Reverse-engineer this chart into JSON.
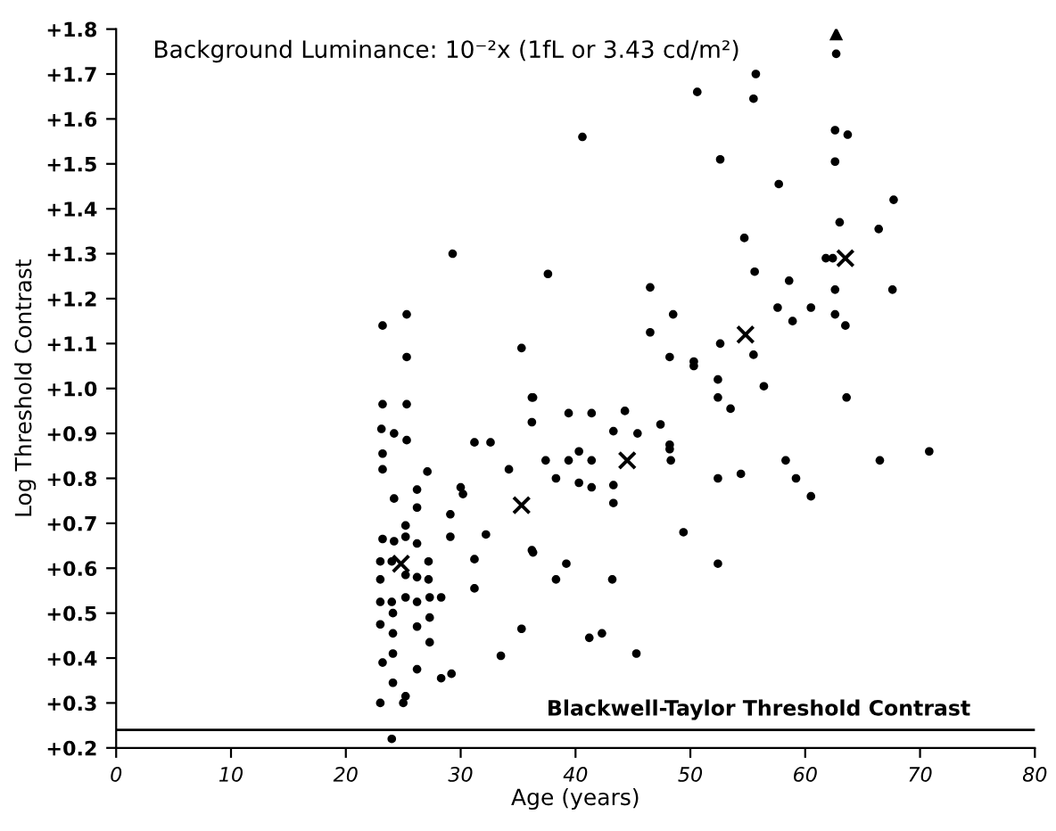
{
  "chart_data": {
    "type": "scatter",
    "title": "Background Luminance: 10⁻²x (1fL or 3.43 cd/m²)",
    "xlabel": "Age (years)",
    "ylabel": "Log Threshold Contrast",
    "xlim": [
      0,
      80
    ],
    "xticks": [
      0,
      10,
      20,
      30,
      40,
      50,
      60,
      70,
      80
    ],
    "ylim": [
      0.2,
      1.8
    ],
    "yticks": [
      {
        "value": 0.2,
        "label": "+0.2"
      },
      {
        "value": 0.3,
        "label": "+0.3"
      },
      {
        "value": 0.4,
        "label": "+0.4"
      },
      {
        "value": 0.5,
        "label": "+0.5"
      },
      {
        "value": 0.6,
        "label": "+0.6"
      },
      {
        "value": 0.7,
        "label": "+0.7"
      },
      {
        "value": 0.8,
        "label": "+0.8"
      },
      {
        "value": 0.9,
        "label": "+0.9"
      },
      {
        "value": 1.0,
        "label": "+1.0"
      },
      {
        "value": 1.1,
        "label": "+1.1"
      },
      {
        "value": 1.2,
        "label": "+1.2"
      },
      {
        "value": 1.3,
        "label": "+1.3"
      },
      {
        "value": 1.4,
        "label": "+1.4"
      },
      {
        "value": 1.5,
        "label": "+1.5"
      },
      {
        "value": 1.6,
        "label": "+1.6"
      },
      {
        "value": 1.7,
        "label": "+1.7"
      },
      {
        "value": 1.8,
        "label": "+1.8"
      }
    ],
    "grid": false,
    "ref_lines": [
      {
        "axis": "y",
        "value": 0.24,
        "label": "Blackwell-Taylor Threshold Contrast",
        "color": "#000000"
      }
    ],
    "series": [
      {
        "color": "#000000",
        "marker": "circle",
        "x": [
          23.2,
          25.3,
          25.3,
          29.3,
          35.3,
          36.2,
          23.2,
          25.3,
          23.1,
          24.2,
          25.3,
          23.2,
          23.2,
          27.1,
          30.0,
          30.2,
          24.2,
          26.2,
          26.2,
          29.1,
          31.2,
          32.6,
          34.2,
          23.2,
          24.2,
          25.2,
          25.2,
          26.2,
          29.1,
          32.2,
          23.0,
          24.0,
          25.2,
          26.2,
          27.2,
          27.2,
          31.2,
          31.2,
          23.0,
          23.0,
          24.0,
          25.2,
          26.2,
          27.3,
          28.3,
          27.3,
          23.0,
          24.1,
          24.1,
          26.2,
          27.3,
          24.1,
          23.2,
          26.2,
          28.3,
          29.2,
          33.5,
          24.1,
          25.2,
          25.0,
          23.0,
          24.0,
          35.3,
          36.2,
          36.2,
          62.7,
          55.7,
          50.6,
          55.5,
          40.6,
          62.6,
          63.7,
          52.6,
          62.6,
          57.7,
          67.7,
          63.0,
          66.4,
          54.7,
          61.8,
          62.4,
          37.6,
          55.6,
          58.6,
          46.5,
          62.6,
          67.6,
          48.5,
          57.6,
          58.9,
          60.5,
          62.6,
          63.5,
          46.5,
          52.6,
          48.2,
          50.3,
          50.3,
          55.5,
          52.4,
          56.4,
          52.4,
          53.5,
          63.6,
          36.3,
          39.4,
          41.4,
          44.3,
          47.4,
          43.3,
          45.4,
          48.2,
          48.2,
          37.4,
          39.4,
          40.3,
          41.4,
          48.3,
          38.3,
          40.3,
          41.4,
          43.3,
          43.3,
          52.4,
          54.4,
          58.3,
          59.2,
          60.5,
          66.5,
          70.8,
          49.4,
          36.3,
          39.2,
          38.3,
          43.2,
          52.4,
          41.2,
          42.3,
          45.3
        ],
        "values": [
          1.14,
          1.165,
          1.07,
          1.3,
          1.09,
          0.98,
          0.965,
          0.965,
          0.91,
          0.9,
          0.885,
          0.855,
          0.82,
          0.815,
          0.78,
          0.765,
          0.755,
          0.775,
          0.735,
          0.72,
          0.88,
          0.88,
          0.82,
          0.665,
          0.66,
          0.695,
          0.67,
          0.655,
          0.67,
          0.675,
          0.615,
          0.615,
          0.585,
          0.58,
          0.615,
          0.575,
          0.62,
          0.555,
          0.575,
          0.525,
          0.525,
          0.535,
          0.525,
          0.535,
          0.535,
          0.49,
          0.475,
          0.5,
          0.455,
          0.47,
          0.435,
          0.41,
          0.39,
          0.375,
          0.355,
          0.365,
          0.405,
          0.345,
          0.315,
          0.3,
          0.3,
          0.22,
          0.465,
          0.64,
          0.925,
          1.745,
          1.7,
          1.66,
          1.645,
          1.56,
          1.575,
          1.565,
          1.51,
          1.505,
          1.455,
          1.42,
          1.37,
          1.355,
          1.335,
          1.29,
          1.29,
          1.255,
          1.26,
          1.24,
          1.225,
          1.22,
          1.22,
          1.165,
          1.18,
          1.15,
          1.18,
          1.165,
          1.14,
          1.125,
          1.1,
          1.07,
          1.06,
          1.05,
          1.075,
          1.02,
          1.005,
          0.98,
          0.955,
          0.98,
          0.98,
          0.945,
          0.945,
          0.95,
          0.92,
          0.905,
          0.9,
          0.875,
          0.865,
          0.84,
          0.84,
          0.86,
          0.84,
          0.84,
          0.8,
          0.79,
          0.78,
          0.785,
          0.745,
          0.8,
          0.81,
          0.84,
          0.8,
          0.76,
          0.84,
          0.86,
          0.68,
          0.635,
          0.61,
          0.575,
          0.575,
          0.61,
          0.445,
          0.455,
          0.41
        ]
      },
      {
        "color": "#000000",
        "marker": "cross",
        "x": [
          24.8,
          35.3,
          44.5,
          54.8,
          63.5
        ],
        "values": [
          0.61,
          0.74,
          0.84,
          1.12,
          1.29
        ]
      },
      {
        "color": "#000000",
        "marker": "triangle",
        "x": [
          62.7
        ],
        "values": [
          1.79
        ]
      }
    ]
  }
}
